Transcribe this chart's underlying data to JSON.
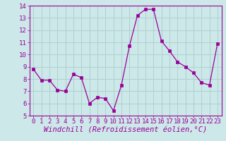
{
  "x": [
    0,
    1,
    2,
    3,
    4,
    5,
    6,
    7,
    8,
    9,
    10,
    11,
    12,
    13,
    14,
    15,
    16,
    17,
    18,
    19,
    20,
    21,
    22,
    23
  ],
  "y": [
    8.8,
    7.9,
    7.9,
    7.1,
    7.0,
    8.4,
    8.1,
    6.0,
    6.5,
    6.4,
    5.4,
    7.5,
    10.7,
    13.2,
    13.7,
    13.7,
    11.1,
    10.3,
    9.4,
    9.0,
    8.5,
    7.7,
    7.5,
    10.9
  ],
  "xlim": [
    -0.5,
    23.5
  ],
  "ylim": [
    5,
    14
  ],
  "yticks": [
    5,
    6,
    7,
    8,
    9,
    10,
    11,
    12,
    13,
    14
  ],
  "xticks": [
    0,
    1,
    2,
    3,
    4,
    5,
    6,
    7,
    8,
    9,
    10,
    11,
    12,
    13,
    14,
    15,
    16,
    17,
    18,
    19,
    20,
    21,
    22,
    23
  ],
  "xlabel": "Windchill (Refroidissement éolien,°C)",
  "line_color": "#990099",
  "marker": "s",
  "marker_size": 2.5,
  "bg_color": "#cce8e8",
  "grid_color": "#b0d0d0",
  "tick_label_fontsize": 6.5,
  "xlabel_fontsize": 7.5
}
